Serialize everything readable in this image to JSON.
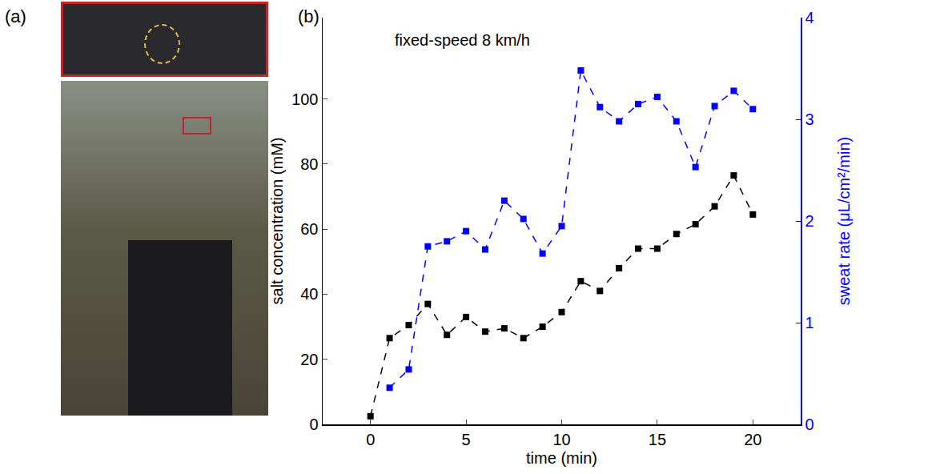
{
  "panel_labels": {
    "a": "(a)",
    "b": "(b)"
  },
  "chart_data": {
    "type": "line",
    "xlabel": "time (min)",
    "ylabel": "salt concentration (mM)",
    "y2label": "sweat rate (μL/cm²/min)",
    "x": [
      0,
      1,
      2,
      3,
      4,
      5,
      6,
      7,
      8,
      9,
      10,
      11,
      12,
      13,
      14,
      15,
      16,
      17,
      18,
      19,
      20
    ],
    "xlim": [
      -2.5,
      22.5
    ],
    "xticks": [
      0,
      5,
      10,
      15,
      20
    ],
    "ylim": [
      0,
      125
    ],
    "yticks": [
      0,
      20,
      40,
      60,
      80,
      100
    ],
    "y2lim": [
      0,
      4
    ],
    "y2ticks": [
      0,
      1,
      2,
      3,
      4
    ],
    "grid": false,
    "series": [
      {
        "color": "#000000",
        "marker": "square",
        "line_style": "dash",
        "axis": "y",
        "values": [
          2.5,
          26.5,
          30.5,
          37,
          27.5,
          33,
          28.5,
          29.5,
          26.5,
          30,
          34.5,
          44,
          41,
          48,
          54,
          54,
          58.5,
          61.5,
          67,
          76.5,
          64.5
        ]
      },
      {
        "color": "#0000ff",
        "marker": "square",
        "line_style": "dash",
        "axis": "y2",
        "values": [
          null,
          0.36,
          0.54,
          1.75,
          1.8,
          1.9,
          1.72,
          2.2,
          2.02,
          1.68,
          1.95,
          3.48,
          3.12,
          2.98,
          3.15,
          3.22,
          2.98,
          2.53,
          3.13,
          3.28,
          3.1
        ]
      }
    ],
    "annotations": [
      {
        "text": "fixed-speed 8 km/h",
        "x": 1.2,
        "y": 118
      }
    ]
  }
}
